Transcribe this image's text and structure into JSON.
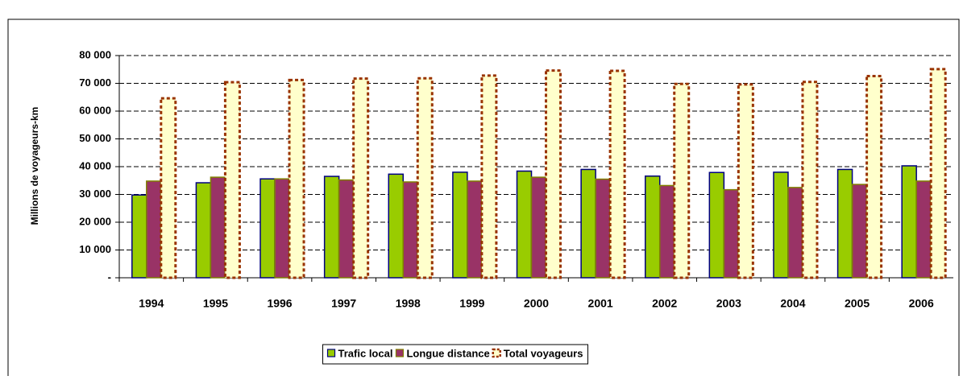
{
  "chart_data": {
    "type": "bar",
    "y_label": "Millions de voyageurs-km",
    "categories": [
      "1994",
      "1995",
      "1996",
      "1997",
      "1998",
      "1999",
      "2000",
      "2001",
      "2002",
      "2003",
      "2004",
      "2005",
      "2006"
    ],
    "series": [
      {
        "name": "Trafic local",
        "color": "#99cc00",
        "values": [
          29800,
          34200,
          35600,
          36500,
          37300,
          38000,
          38400,
          39000,
          36600,
          37900,
          38000,
          39000,
          40300
        ]
      },
      {
        "name": "Longue distance",
        "color": "#993366",
        "values": [
          34800,
          36200,
          35600,
          35200,
          34500,
          34800,
          36200,
          35500,
          33200,
          31700,
          32500,
          33600,
          34800
        ]
      },
      {
        "name": "Total voyageurs",
        "color": "#ffffcc",
        "values": [
          64600,
          70400,
          71200,
          71700,
          71800,
          72800,
          74600,
          74500,
          69800,
          69600,
          70500,
          72600,
          75100
        ]
      }
    ],
    "ylim": [
      0,
      80000
    ],
    "yticks": [
      {
        "value": 0,
        "label": "-"
      },
      {
        "value": 10000,
        "label": "10 000"
      },
      {
        "value": 20000,
        "label": "20 000"
      },
      {
        "value": 30000,
        "label": "30 000"
      },
      {
        "value": 40000,
        "label": "40 000"
      },
      {
        "value": 50000,
        "label": "50 000"
      },
      {
        "value": 60000,
        "label": "60 000"
      },
      {
        "value": 70000,
        "label": "70 000"
      },
      {
        "value": 80000,
        "label": "80 000"
      }
    ],
    "grid": true,
    "legend": "bottom"
  }
}
